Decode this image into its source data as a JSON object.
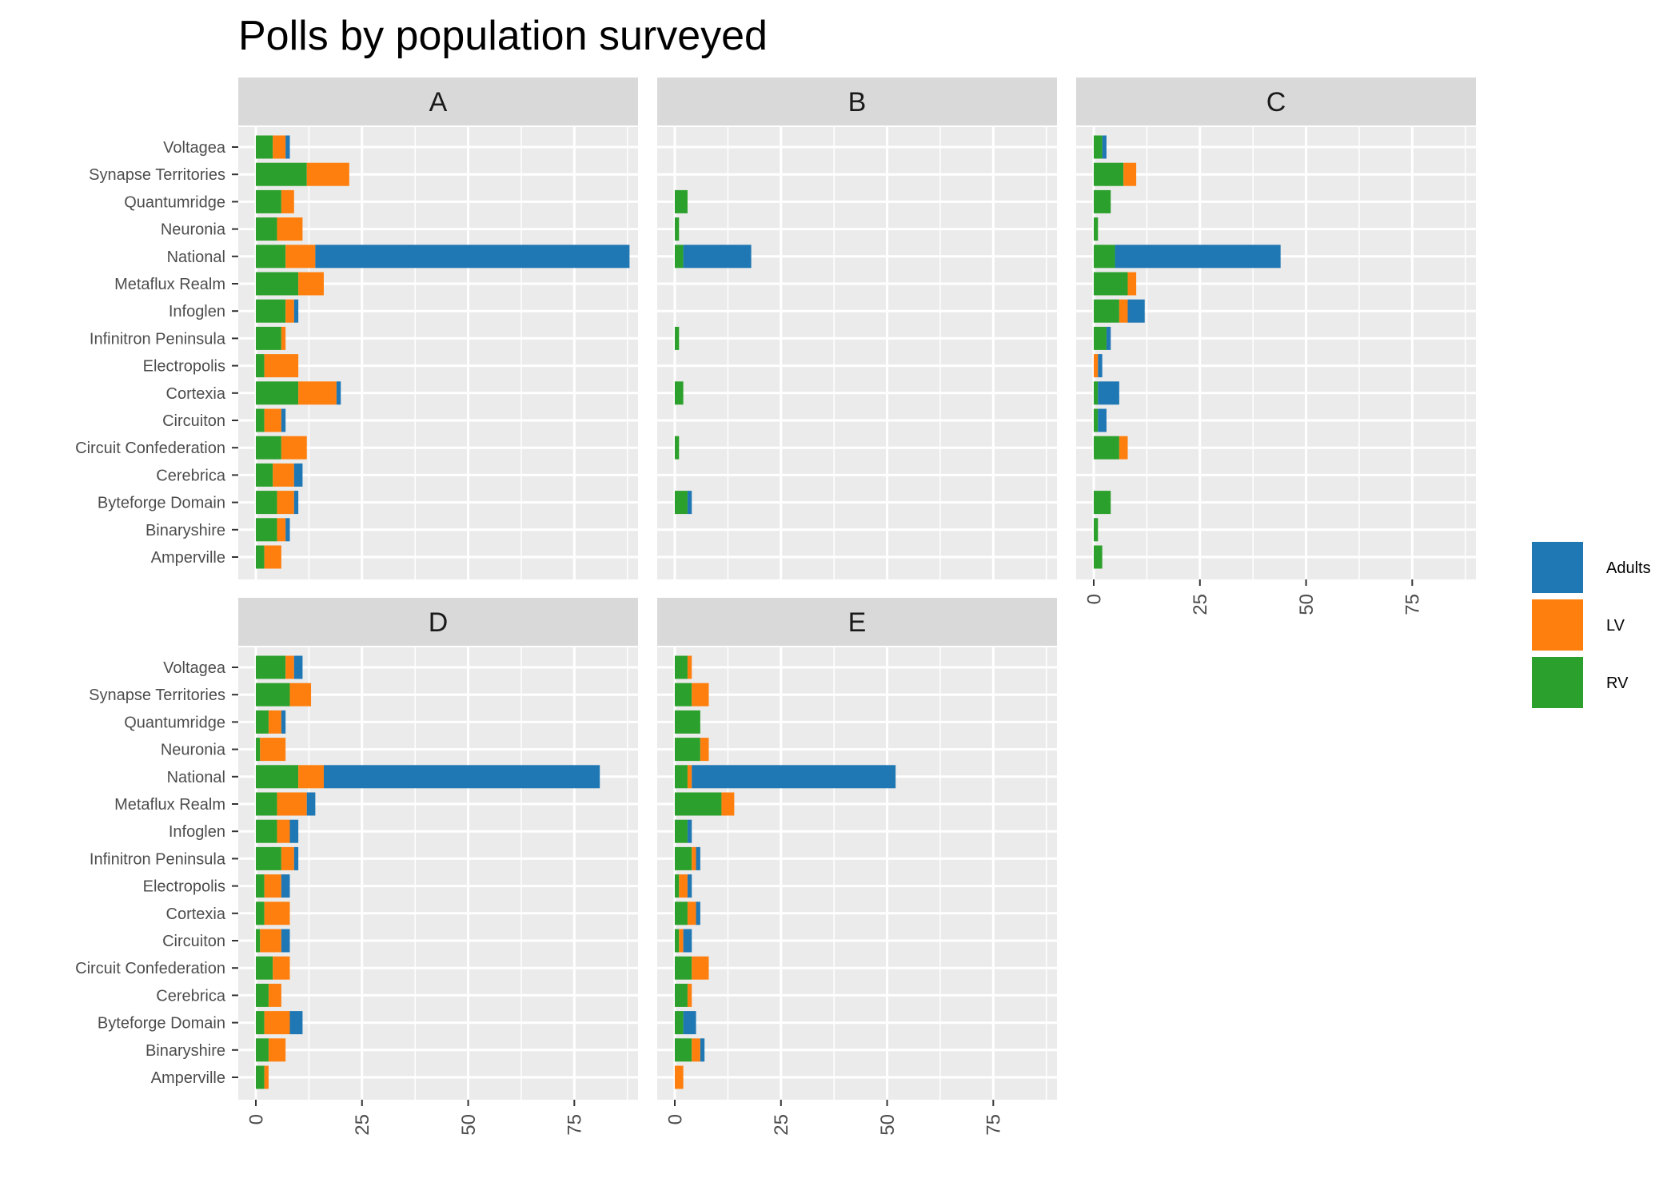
{
  "chart_data": {
    "type": "bar",
    "orientation": "horizontal",
    "stacked": true,
    "title": "Polls by population surveyed",
    "xlim": [
      0,
      90
    ],
    "x_ticks": [
      0,
      25,
      50,
      75
    ],
    "x_tick_labels": [
      "0",
      "25",
      "50",
      "75"
    ],
    "grid": true,
    "legend_position": "right",
    "categories": [
      "Voltagea",
      "Synapse Territories",
      "Quantumridge",
      "Neuronia",
      "National",
      "Metaflux Realm",
      "Infoglen",
      "Infinitron Peninsula",
      "Electropolis",
      "Cortexia",
      "Circuiton",
      "Circuit Confederation",
      "Cerebrica",
      "Byteforge Domain",
      "Binaryshire",
      "Amperville"
    ],
    "series_order": [
      "RV",
      "LV",
      "Adults"
    ],
    "legend": [
      {
        "name": "Adults",
        "color": "#1f77b4"
      },
      {
        "name": "LV",
        "color": "#ff7f0e"
      },
      {
        "name": "RV",
        "color": "#2ca02c"
      }
    ],
    "panels": [
      {
        "label": "A",
        "series": [
          {
            "name": "RV",
            "values": [
              4,
              12,
              6,
              5,
              7,
              10,
              7,
              6,
              2,
              10,
              2,
              6,
              4,
              5,
              5,
              2
            ]
          },
          {
            "name": "LV",
            "values": [
              3,
              10,
              3,
              6,
              7,
              6,
              2,
              1,
              8,
              9,
              4,
              6,
              5,
              4,
              2,
              4
            ]
          },
          {
            "name": "Adults",
            "values": [
              1,
              0,
              0,
              0,
              74,
              0,
              1,
              0,
              0,
              1,
              1,
              0,
              2,
              1,
              1,
              0
            ]
          }
        ]
      },
      {
        "label": "B",
        "series": [
          {
            "name": "RV",
            "values": [
              0,
              0,
              3,
              1,
              2,
              0,
              0,
              1,
              0,
              2,
              0,
              1,
              0,
              3,
              0,
              0
            ]
          },
          {
            "name": "LV",
            "values": [
              0,
              0,
              0,
              0,
              0,
              0,
              0,
              0,
              0,
              0,
              0,
              0,
              0,
              0,
              0,
              0
            ]
          },
          {
            "name": "Adults",
            "values": [
              0,
              0,
              0,
              0,
              16,
              0,
              0,
              0,
              0,
              0,
              0,
              0,
              0,
              1,
              0,
              0
            ]
          }
        ]
      },
      {
        "label": "C",
        "series": [
          {
            "name": "RV",
            "values": [
              2,
              7,
              4,
              1,
              5,
              8,
              6,
              3,
              0,
              1,
              1,
              6,
              0,
              4,
              1,
              2
            ]
          },
          {
            "name": "LV",
            "values": [
              0,
              3,
              0,
              0,
              0,
              2,
              2,
              0,
              1,
              0,
              0,
              2,
              0,
              0,
              0,
              0
            ]
          },
          {
            "name": "Adults",
            "values": [
              1,
              0,
              0,
              0,
              39,
              0,
              4,
              1,
              1,
              5,
              2,
              0,
              0,
              0,
              0,
              0
            ]
          }
        ]
      },
      {
        "label": "D",
        "series": [
          {
            "name": "RV",
            "values": [
              7,
              8,
              3,
              1,
              10,
              5,
              5,
              6,
              2,
              2,
              1,
              4,
              3,
              2,
              3,
              2
            ]
          },
          {
            "name": "LV",
            "values": [
              2,
              5,
              3,
              6,
              6,
              7,
              3,
              3,
              4,
              6,
              5,
              4,
              3,
              6,
              4,
              1
            ]
          },
          {
            "name": "Adults",
            "values": [
              2,
              0,
              1,
              0,
              65,
              2,
              2,
              1,
              2,
              0,
              2,
              0,
              0,
              3,
              0,
              0
            ]
          }
        ]
      },
      {
        "label": "E",
        "series": [
          {
            "name": "RV",
            "values": [
              3,
              4,
              6,
              6,
              3,
              11,
              3,
              4,
              1,
              3,
              1,
              4,
              3,
              2,
              4,
              0
            ]
          },
          {
            "name": "LV",
            "values": [
              1,
              4,
              0,
              2,
              1,
              3,
              0,
              1,
              2,
              2,
              1,
              4,
              1,
              0,
              2,
              2
            ]
          },
          {
            "name": "Adults",
            "values": [
              0,
              0,
              0,
              0,
              48,
              0,
              1,
              1,
              1,
              1,
              2,
              0,
              0,
              3,
              1,
              0
            ]
          }
        ]
      }
    ]
  }
}
